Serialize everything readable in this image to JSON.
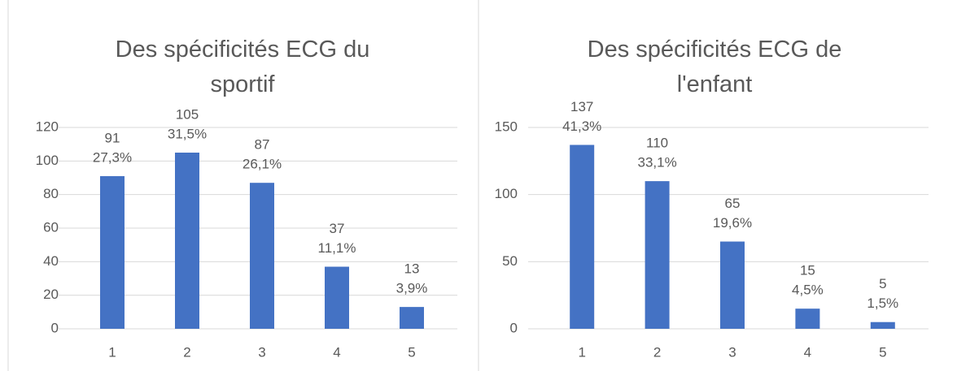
{
  "chart_data": [
    {
      "type": "bar",
      "title": "Des spécificités ECG du sportif",
      "categories": [
        "1",
        "2",
        "3",
        "4",
        "5"
      ],
      "values": [
        91,
        105,
        87,
        37,
        13
      ],
      "percent_labels": [
        "27,3%",
        "31,5%",
        "26,1%",
        "11,1%",
        "3,9%"
      ],
      "color": "#4472c4",
      "ylim": [
        0,
        120
      ],
      "yticks": [
        0,
        20,
        40,
        60,
        80,
        100,
        120
      ],
      "grid": true
    },
    {
      "type": "bar",
      "title": "Des spécificités ECG de l'enfant",
      "categories": [
        "1",
        "2",
        "3",
        "4",
        "5"
      ],
      "values": [
        137,
        110,
        65,
        15,
        5
      ],
      "percent_labels": [
        "41,3%",
        "33,1%",
        "19,6%",
        "4,5%",
        "1,5%"
      ],
      "color": "#4472c4",
      "ylim": [
        0,
        150
      ],
      "yticks": [
        0,
        50,
        100,
        150
      ],
      "grid": true
    }
  ]
}
